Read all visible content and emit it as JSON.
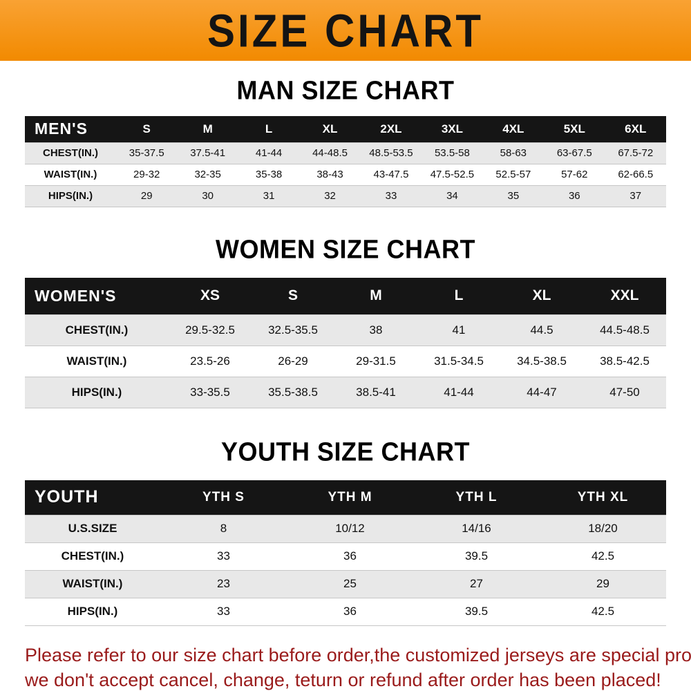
{
  "banner": {
    "title": "SIZE CHART"
  },
  "colors": {
    "banner_bg": "#F28A00",
    "banner_bg_light": "#F9A233",
    "header_bg": "#151515",
    "stripe": "#E8E8E8",
    "note": "#9A1B1B"
  },
  "sections": [
    {
      "heading": "MAN SIZE CHART",
      "table": {
        "header_label": "MEN'S",
        "columns": [
          "S",
          "M",
          "L",
          "XL",
          "2XL",
          "3XL",
          "4XL",
          "5XL",
          "6XL"
        ],
        "rows": [
          {
            "label": "CHEST(IN.)",
            "values": [
              "35-37.5",
              "37.5-41",
              "41-44",
              "44-48.5",
              "48.5-53.5",
              "53.5-58",
              "58-63",
              "63-67.5",
              "67.5-72"
            ]
          },
          {
            "label": "WAIST(IN.)",
            "values": [
              "29-32",
              "32-35",
              "35-38",
              "38-43",
              "43-47.5",
              "47.5-52.5",
              "52.5-57",
              "57-62",
              "62-66.5"
            ]
          },
          {
            "label": "HIPS(IN.)",
            "values": [
              "29",
              "30",
              "31",
              "32",
              "33",
              "34",
              "35",
              "36",
              "37"
            ]
          }
        ]
      }
    },
    {
      "heading": "WOMEN SIZE CHART",
      "table": {
        "header_label": "WOMEN'S",
        "columns": [
          "XS",
          "S",
          "M",
          "L",
          "XL",
          "XXL"
        ],
        "rows": [
          {
            "label": "CHEST(IN.)",
            "values": [
              "29.5-32.5",
              "32.5-35.5",
              "38",
              "41",
              "44.5",
              "44.5-48.5"
            ]
          },
          {
            "label": "WAIST(IN.)",
            "values": [
              "23.5-26",
              "26-29",
              "29-31.5",
              "31.5-34.5",
              "34.5-38.5",
              "38.5-42.5"
            ]
          },
          {
            "label": "HIPS(IN.)",
            "values": [
              "33-35.5",
              "35.5-38.5",
              "38.5-41",
              "41-44",
              "44-47",
              "47-50"
            ]
          }
        ]
      }
    },
    {
      "heading": "YOUTH SIZE CHART",
      "table": {
        "header_label": "YOUTH",
        "columns": [
          "YTH S",
          "YTH M",
          "YTH L",
          "YTH XL"
        ],
        "rows": [
          {
            "label": "U.S.SIZE",
            "values": [
              "8",
              "10/12",
              "14/16",
              "18/20"
            ]
          },
          {
            "label": "CHEST(IN.)",
            "values": [
              "33",
              "36",
              "39.5",
              "42.5"
            ]
          },
          {
            "label": "WAIST(IN.)",
            "values": [
              "23",
              "25",
              "27",
              "29"
            ]
          },
          {
            "label": "HIPS(IN.)",
            "values": [
              "33",
              "36",
              "39.5",
              "42.5"
            ]
          }
        ]
      }
    }
  ],
  "footer": {
    "lines": [
      "Please refer to our size chart before order,the customized jerseys are special products,",
      "we don't accept cancel, change, teturn or refund after order has been placed!"
    ]
  },
  "chart_data": [
    {
      "type": "table",
      "title": "MAN SIZE CHART",
      "columns": [
        "MEN'S",
        "S",
        "M",
        "L",
        "XL",
        "2XL",
        "3XL",
        "4XL",
        "5XL",
        "6XL"
      ],
      "rows": [
        [
          "CHEST(IN.)",
          "35-37.5",
          "37.5-41",
          "41-44",
          "44-48.5",
          "48.5-53.5",
          "53.5-58",
          "58-63",
          "63-67.5",
          "67.5-72"
        ],
        [
          "WAIST(IN.)",
          "29-32",
          "32-35",
          "35-38",
          "38-43",
          "43-47.5",
          "47.5-52.5",
          "52.5-57",
          "57-62",
          "62-66.5"
        ],
        [
          "HIPS(IN.)",
          "29",
          "30",
          "31",
          "32",
          "33",
          "34",
          "35",
          "36",
          "37"
        ]
      ]
    },
    {
      "type": "table",
      "title": "WOMEN SIZE CHART",
      "columns": [
        "WOMEN'S",
        "XS",
        "S",
        "M",
        "L",
        "XL",
        "XXL"
      ],
      "rows": [
        [
          "CHEST(IN.)",
          "29.5-32.5",
          "32.5-35.5",
          "38",
          "41",
          "44.5",
          "44.5-48.5"
        ],
        [
          "WAIST(IN.)",
          "23.5-26",
          "26-29",
          "29-31.5",
          "31.5-34.5",
          "34.5-38.5",
          "38.5-42.5"
        ],
        [
          "HIPS(IN.)",
          "33-35.5",
          "35.5-38.5",
          "38.5-41",
          "41-44",
          "44-47",
          "47-50"
        ]
      ]
    },
    {
      "type": "table",
      "title": "YOUTH SIZE CHART",
      "columns": [
        "YOUTH",
        "YTH S",
        "YTH M",
        "YTH L",
        "YTH XL"
      ],
      "rows": [
        [
          "U.S.SIZE",
          "8",
          "10/12",
          "14/16",
          "18/20"
        ],
        [
          "CHEST(IN.)",
          "33",
          "36",
          "39.5",
          "42.5"
        ],
        [
          "WAIST(IN.)",
          "23",
          "25",
          "27",
          "29"
        ],
        [
          "HIPS(IN.)",
          "33",
          "36",
          "39.5",
          "42.5"
        ]
      ]
    }
  ]
}
